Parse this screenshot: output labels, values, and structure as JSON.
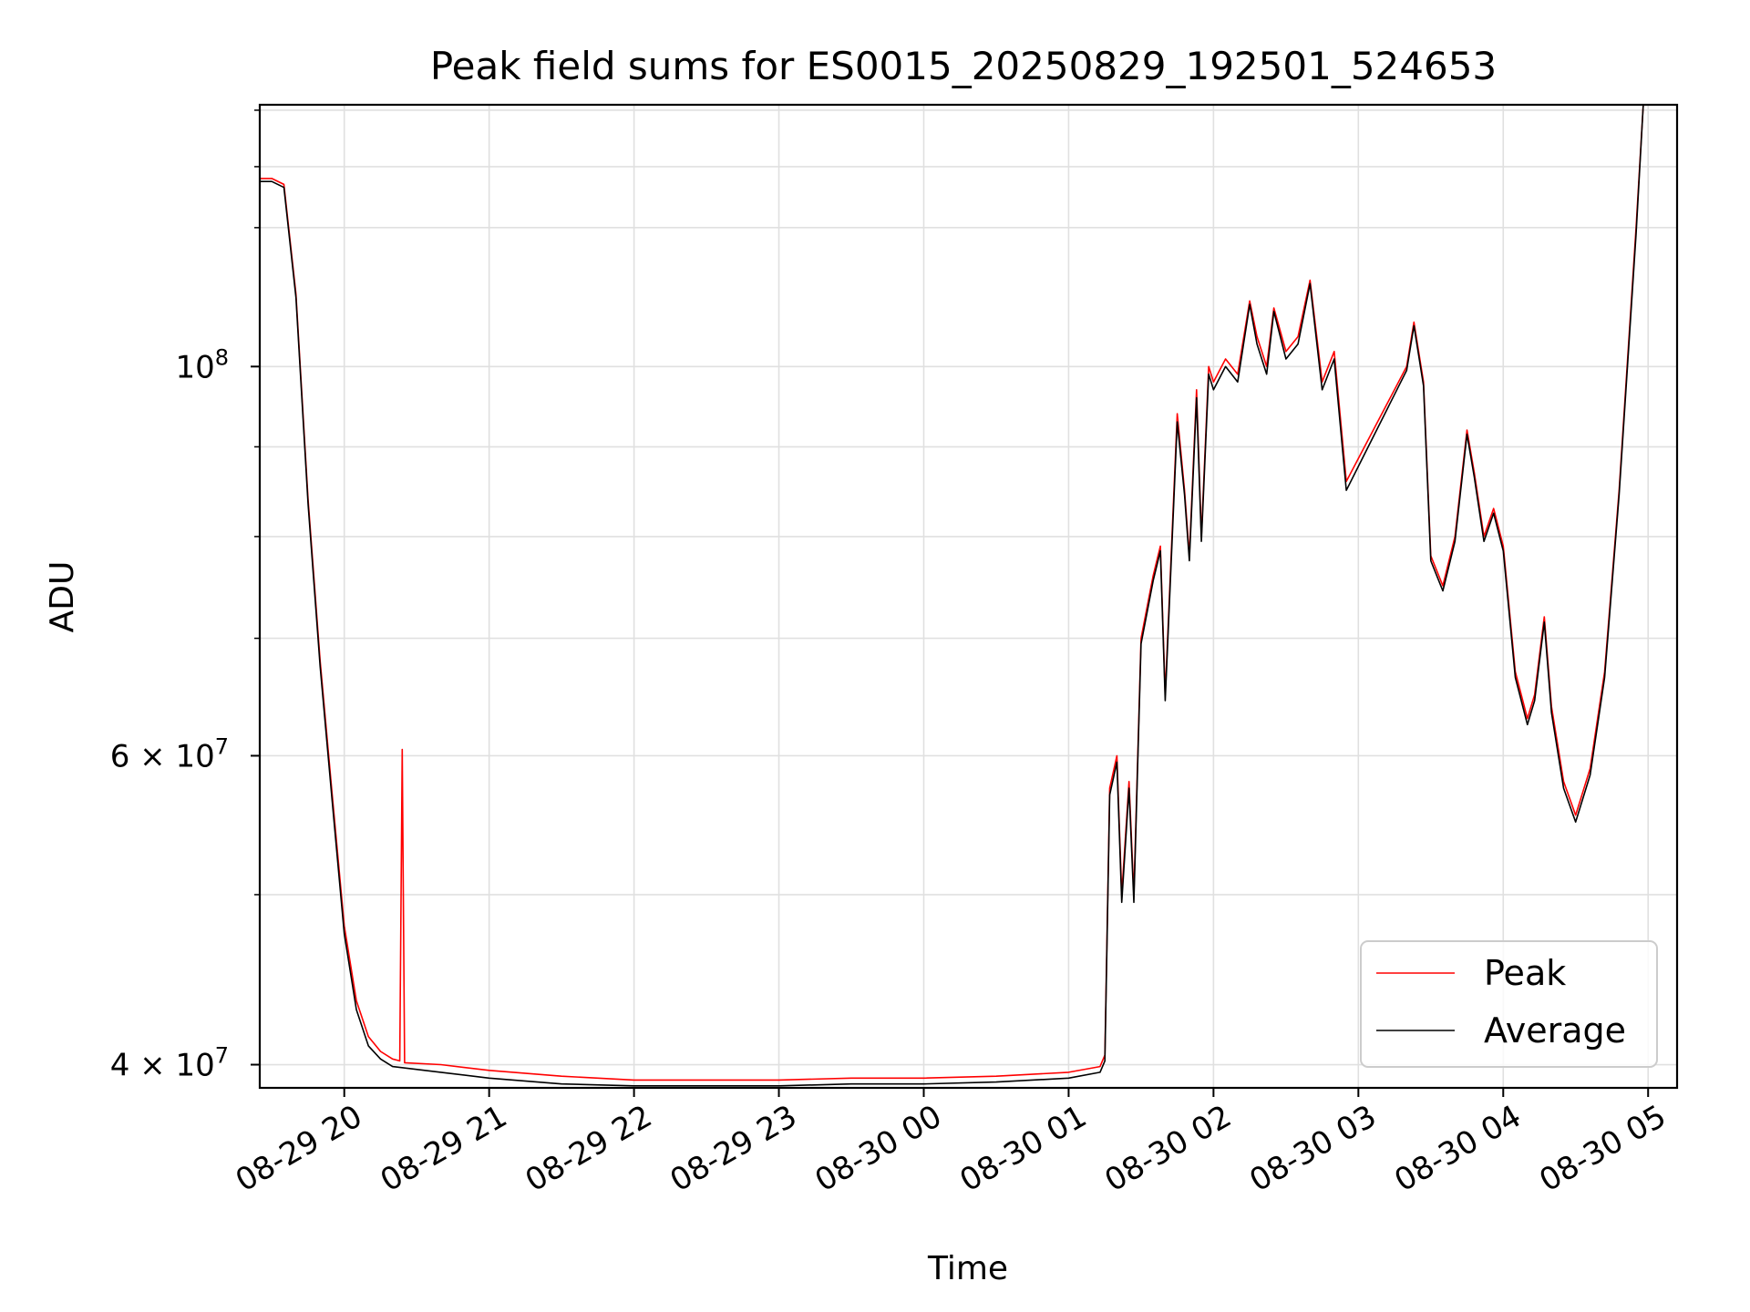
{
  "chart_data": {
    "type": "line",
    "title": "Peak field sums for ES0015_20250829_192501_524653",
    "xlabel": "Time",
    "ylabel": "ADU",
    "y_scale": "log",
    "ylim": [
      38800000,
      141000000
    ],
    "xlim": [
      "2025-08-29 19:25",
      "2025-08-30 05:12"
    ],
    "grid": true,
    "legend_position": "lower right",
    "x_ticks": [
      "08-29 20",
      "08-29 21",
      "08-29 22",
      "08-29 23",
      "08-30 00",
      "08-30 01",
      "08-30 02",
      "08-30 03",
      "08-30 04",
      "08-30 05"
    ],
    "y_ticks": [
      {
        "label": "4 × 10",
        "exponent": "7",
        "value": 40000000
      },
      {
        "label": "6 × 10",
        "exponent": "7",
        "value": 60000000
      },
      {
        "label": "10",
        "exponent": "8",
        "value": 100000000
      }
    ],
    "series": [
      {
        "name": "Peak",
        "color": "#ff0000",
        "points": [
          [
            "2025-08-29 19:25",
            128000000
          ],
          [
            "2025-08-29 19:30",
            128000000
          ],
          [
            "2025-08-29 19:35",
            127000000
          ],
          [
            "2025-08-29 19:40",
            110000000
          ],
          [
            "2025-08-29 19:45",
            84000000
          ],
          [
            "2025-08-29 19:50",
            68000000
          ],
          [
            "2025-08-29 19:55",
            57000000
          ],
          [
            "2025-08-29 20:00",
            48000000
          ],
          [
            "2025-08-29 20:05",
            43500000
          ],
          [
            "2025-08-29 20:10",
            41500000
          ],
          [
            "2025-08-29 20:15",
            40700000
          ],
          [
            "2025-08-29 20:20",
            40300000
          ],
          [
            "2025-08-29 20:23",
            40200000
          ],
          [
            "2025-08-29 20:24",
            60500000
          ],
          [
            "2025-08-29 20:25",
            40100000
          ],
          [
            "2025-08-29 20:40",
            40000000
          ],
          [
            "2025-08-29 21:00",
            39700000
          ],
          [
            "2025-08-29 21:30",
            39400000
          ],
          [
            "2025-08-29 22:00",
            39200000
          ],
          [
            "2025-08-29 22:30",
            39200000
          ],
          [
            "2025-08-29 23:00",
            39200000
          ],
          [
            "2025-08-29 23:30",
            39300000
          ],
          [
            "2025-08-30 00:00",
            39300000
          ],
          [
            "2025-08-30 00:30",
            39400000
          ],
          [
            "2025-08-30 01:00",
            39600000
          ],
          [
            "2025-08-30 01:13",
            39900000
          ],
          [
            "2025-08-30 01:15",
            40500000
          ],
          [
            "2025-08-30 01:17",
            57500000
          ],
          [
            "2025-08-30 01:20",
            60000000
          ],
          [
            "2025-08-30 01:22",
            50000000
          ],
          [
            "2025-08-30 01:25",
            58000000
          ],
          [
            "2025-08-30 01:27",
            50000000
          ],
          [
            "2025-08-30 01:30",
            70000000
          ],
          [
            "2025-08-30 01:35",
            76000000
          ],
          [
            "2025-08-30 01:38",
            79000000
          ],
          [
            "2025-08-30 01:40",
            65000000
          ],
          [
            "2025-08-30 01:45",
            94000000
          ],
          [
            "2025-08-30 01:48",
            85000000
          ],
          [
            "2025-08-30 01:50",
            78000000
          ],
          [
            "2025-08-30 01:53",
            97000000
          ],
          [
            "2025-08-30 01:55",
            80000000
          ],
          [
            "2025-08-30 01:58",
            100000000
          ],
          [
            "2025-08-30 02:00",
            98000000
          ],
          [
            "2025-08-30 02:05",
            101000000
          ],
          [
            "2025-08-30 02:10",
            99000000
          ],
          [
            "2025-08-30 02:15",
            109000000
          ],
          [
            "2025-08-30 02:18",
            104000000
          ],
          [
            "2025-08-30 02:22",
            100000000
          ],
          [
            "2025-08-30 02:25",
            108000000
          ],
          [
            "2025-08-30 02:30",
            102000000
          ],
          [
            "2025-08-30 02:35",
            104000000
          ],
          [
            "2025-08-30 02:40",
            112000000
          ],
          [
            "2025-08-30 02:45",
            98000000
          ],
          [
            "2025-08-30 02:50",
            102000000
          ],
          [
            "2025-08-30 02:55",
            86000000
          ],
          [
            "2025-08-30 03:20",
            100000000
          ],
          [
            "2025-08-30 03:23",
            106000000
          ],
          [
            "2025-08-30 03:27",
            98000000
          ],
          [
            "2025-08-30 03:30",
            78000000
          ],
          [
            "2025-08-30 03:35",
            75000000
          ],
          [
            "2025-08-30 03:40",
            80000000
          ],
          [
            "2025-08-30 03:45",
            92000000
          ],
          [
            "2025-08-30 03:48",
            87000000
          ],
          [
            "2025-08-30 03:52",
            80000000
          ],
          [
            "2025-08-30 03:56",
            83000000
          ],
          [
            "2025-08-30 04:00",
            79000000
          ],
          [
            "2025-08-30 04:05",
            67000000
          ],
          [
            "2025-08-30 04:10",
            63000000
          ],
          [
            "2025-08-30 04:13",
            65000000
          ],
          [
            "2025-08-30 04:17",
            72000000
          ],
          [
            "2025-08-30 04:20",
            64000000
          ],
          [
            "2025-08-30 04:25",
            58000000
          ],
          [
            "2025-08-30 04:30",
            55500000
          ],
          [
            "2025-08-30 04:36",
            59000000
          ],
          [
            "2025-08-30 04:42",
            67000000
          ],
          [
            "2025-08-30 04:48",
            85000000
          ],
          [
            "2025-08-30 04:55",
            120000000
          ],
          [
            "2025-08-30 04:58",
            141000000
          ]
        ]
      },
      {
        "name": "Average",
        "color": "#000000",
        "points": [
          [
            "2025-08-29 19:25",
            127500000
          ],
          [
            "2025-08-29 19:30",
            127500000
          ],
          [
            "2025-08-29 19:35",
            126500000
          ],
          [
            "2025-08-29 19:40",
            109500000
          ],
          [
            "2025-08-29 19:45",
            83500000
          ],
          [
            "2025-08-29 19:50",
            67500000
          ],
          [
            "2025-08-29 19:55",
            56500000
          ],
          [
            "2025-08-29 20:00",
            47500000
          ],
          [
            "2025-08-29 20:05",
            43000000
          ],
          [
            "2025-08-29 20:10",
            41000000
          ],
          [
            "2025-08-29 20:15",
            40300000
          ],
          [
            "2025-08-29 20:20",
            39900000
          ],
          [
            "2025-08-29 20:40",
            39600000
          ],
          [
            "2025-08-29 21:00",
            39300000
          ],
          [
            "2025-08-29 21:30",
            39000000
          ],
          [
            "2025-08-29 22:00",
            38900000
          ],
          [
            "2025-08-29 22:30",
            38900000
          ],
          [
            "2025-08-29 23:00",
            38900000
          ],
          [
            "2025-08-29 23:30",
            39000000
          ],
          [
            "2025-08-30 00:00",
            39000000
          ],
          [
            "2025-08-30 00:30",
            39100000
          ],
          [
            "2025-08-30 01:00",
            39300000
          ],
          [
            "2025-08-30 01:13",
            39600000
          ],
          [
            "2025-08-30 01:15",
            40200000
          ],
          [
            "2025-08-30 01:17",
            57000000
          ],
          [
            "2025-08-30 01:20",
            59500000
          ],
          [
            "2025-08-30 01:22",
            49500000
          ],
          [
            "2025-08-30 01:25",
            57500000
          ],
          [
            "2025-08-30 01:27",
            49500000
          ],
          [
            "2025-08-30 01:30",
            69500000
          ],
          [
            "2025-08-30 01:35",
            75500000
          ],
          [
            "2025-08-30 01:38",
            78500000
          ],
          [
            "2025-08-30 01:40",
            64500000
          ],
          [
            "2025-08-30 01:45",
            93000000
          ],
          [
            "2025-08-30 01:48",
            84500000
          ],
          [
            "2025-08-30 01:50",
            77500000
          ],
          [
            "2025-08-30 01:53",
            96000000
          ],
          [
            "2025-08-30 01:55",
            79500000
          ],
          [
            "2025-08-30 01:58",
            99000000
          ],
          [
            "2025-08-30 02:00",
            97000000
          ],
          [
            "2025-08-30 02:05",
            100000000
          ],
          [
            "2025-08-30 02:10",
            98000000
          ],
          [
            "2025-08-30 02:15",
            108500000
          ],
          [
            "2025-08-30 02:18",
            103000000
          ],
          [
            "2025-08-30 02:22",
            99000000
          ],
          [
            "2025-08-30 02:25",
            107500000
          ],
          [
            "2025-08-30 02:30",
            101000000
          ],
          [
            "2025-08-30 02:35",
            103000000
          ],
          [
            "2025-08-30 02:40",
            111500000
          ],
          [
            "2025-08-30 02:45",
            97000000
          ],
          [
            "2025-08-30 02:50",
            101000000
          ],
          [
            "2025-08-30 02:55",
            85000000
          ],
          [
            "2025-08-30 03:20",
            99500000
          ],
          [
            "2025-08-30 03:23",
            105500000
          ],
          [
            "2025-08-30 03:27",
            97500000
          ],
          [
            "2025-08-30 03:30",
            77500000
          ],
          [
            "2025-08-30 03:35",
            74500000
          ],
          [
            "2025-08-30 03:40",
            79500000
          ],
          [
            "2025-08-30 03:45",
            91500000
          ],
          [
            "2025-08-30 03:48",
            86500000
          ],
          [
            "2025-08-30 03:52",
            79500000
          ],
          [
            "2025-08-30 03:56",
            82500000
          ],
          [
            "2025-08-30 04:00",
            78500000
          ],
          [
            "2025-08-30 04:05",
            66500000
          ],
          [
            "2025-08-30 04:10",
            62500000
          ],
          [
            "2025-08-30 04:13",
            64500000
          ],
          [
            "2025-08-30 04:17",
            71500000
          ],
          [
            "2025-08-30 04:20",
            63500000
          ],
          [
            "2025-08-30 04:25",
            57500000
          ],
          [
            "2025-08-30 04:30",
            55000000
          ],
          [
            "2025-08-30 04:36",
            58500000
          ],
          [
            "2025-08-30 04:42",
            66500000
          ],
          [
            "2025-08-30 04:48",
            84500000
          ],
          [
            "2025-08-30 04:55",
            119000000
          ],
          [
            "2025-08-30 04:58",
            141000000
          ]
        ]
      }
    ]
  }
}
